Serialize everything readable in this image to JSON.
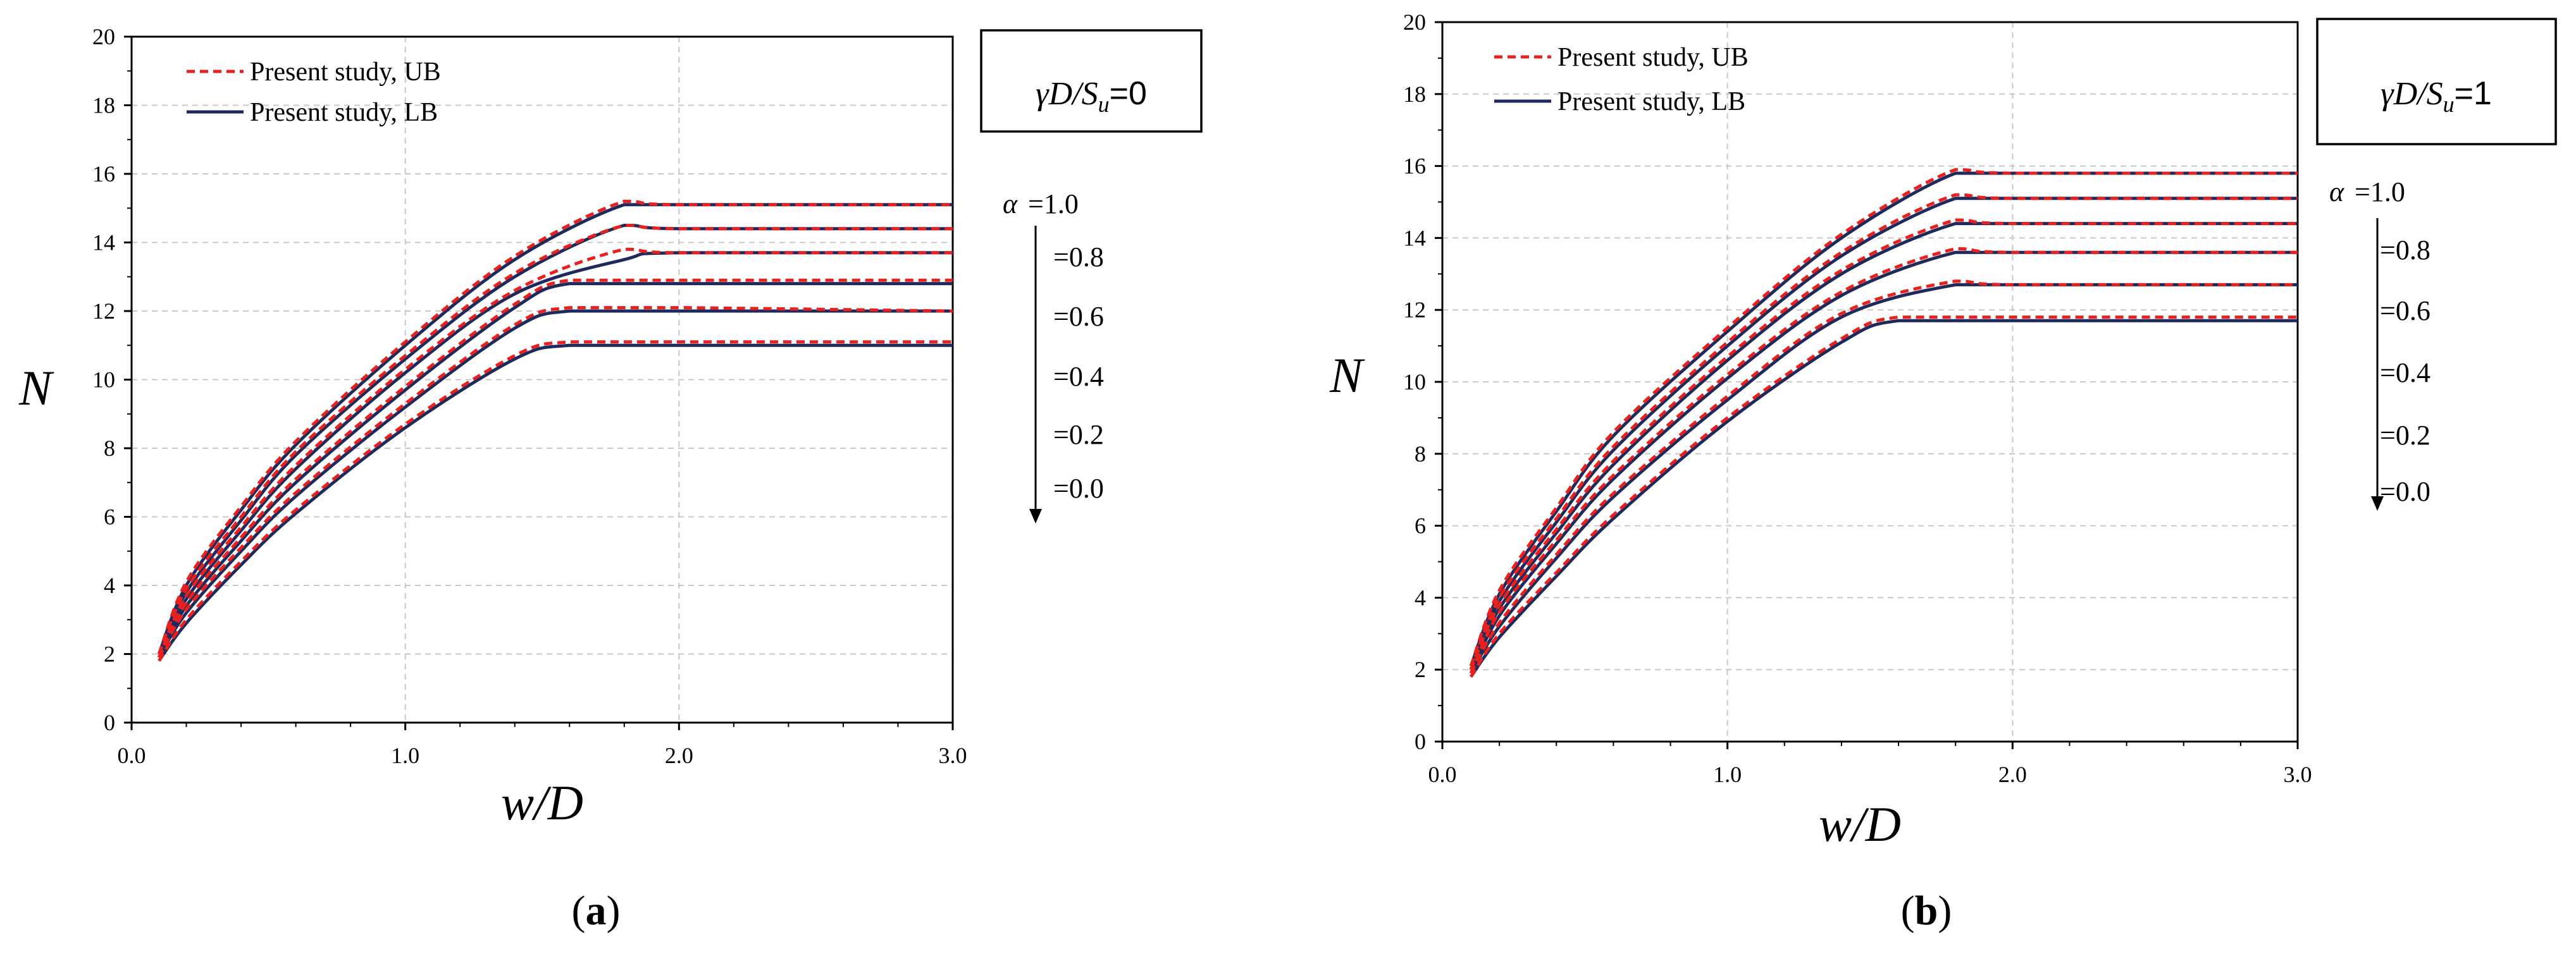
{
  "chart_data": [
    {
      "type": "line",
      "panel_label": "a",
      "xlabel": "w/D",
      "ylabel": "N",
      "xlim": [
        0,
        3
      ],
      "ylim": [
        0,
        20
      ],
      "x_ticks": [
        "0.0",
        "1.0",
        "2.0",
        "3.0"
      ],
      "y_ticks": [
        "0",
        "2",
        "4",
        "6",
        "8",
        "10",
        "12",
        "14",
        "16",
        "18",
        "20"
      ],
      "grid": true,
      "legend_position": "top-left",
      "legend": [
        "Present study, UB",
        "Present study, LB"
      ],
      "annotation": {
        "prefix": "γD/S",
        "subscript": "u",
        "suffix": "=0"
      },
      "alpha_title": "α",
      "alpha_labels": [
        "=1.0",
        "=0.8",
        "=0.6",
        "=0.4",
        "=0.2",
        "=0.0"
      ],
      "series": [
        {
          "name": "α=1.0 UB",
          "style": "UB",
          "x": [
            0.1,
            0.2,
            0.4,
            0.6,
            1.0,
            1.4,
            1.8,
            2.0,
            3.0
          ],
          "values": [
            2.0,
            4.1,
            6.3,
            8.2,
            11.1,
            13.6,
            15.2,
            15.1,
            15.1
          ]
        },
        {
          "name": "α=1.0 LB",
          "style": "LB",
          "x": [
            0.1,
            0.2,
            0.4,
            0.6,
            1.0,
            1.4,
            1.8,
            2.0,
            3.0
          ],
          "values": [
            2.0,
            4.0,
            6.2,
            8.1,
            11.0,
            13.5,
            15.1,
            15.1,
            15.1
          ]
        },
        {
          "name": "α=0.8 UB",
          "style": "UB",
          "x": [
            0.1,
            0.2,
            0.4,
            0.6,
            1.0,
            1.4,
            1.8,
            2.0,
            3.0
          ],
          "values": [
            2.0,
            3.9,
            6.0,
            7.9,
            10.7,
            13.1,
            14.5,
            14.4,
            14.4
          ]
        },
        {
          "name": "α=0.8 LB",
          "style": "LB",
          "x": [
            0.1,
            0.2,
            0.4,
            0.6,
            1.0,
            1.4,
            1.8,
            2.0,
            3.0
          ],
          "values": [
            2.0,
            3.8,
            5.9,
            7.8,
            10.6,
            13.0,
            14.5,
            14.4,
            14.4
          ]
        },
        {
          "name": "α=0.6 UB",
          "style": "UB",
          "x": [
            0.1,
            0.2,
            0.4,
            0.6,
            1.0,
            1.4,
            1.8,
            2.0,
            3.0
          ],
          "values": [
            1.9,
            3.7,
            5.7,
            7.5,
            10.3,
            12.6,
            13.8,
            13.7,
            13.7
          ]
        },
        {
          "name": "α=0.6 LB",
          "style": "LB",
          "x": [
            0.1,
            0.2,
            0.4,
            0.6,
            1.0,
            1.4,
            1.8,
            2.0,
            3.0
          ],
          "values": [
            1.9,
            3.6,
            5.6,
            7.4,
            10.2,
            12.5,
            13.5,
            13.7,
            13.7
          ]
        },
        {
          "name": "α=0.4 UB",
          "style": "UB",
          "x": [
            0.1,
            0.2,
            0.4,
            0.6,
            1.0,
            1.4,
            1.6,
            2.0,
            3.0
          ],
          "values": [
            1.9,
            3.5,
            5.4,
            7.1,
            9.8,
            12.2,
            12.9,
            12.9,
            12.9
          ]
        },
        {
          "name": "α=0.4 LB",
          "style": "LB",
          "x": [
            0.1,
            0.2,
            0.4,
            0.6,
            1.0,
            1.4,
            1.6,
            2.0,
            3.0
          ],
          "values": [
            1.9,
            3.4,
            5.3,
            7.0,
            9.7,
            12.1,
            12.8,
            12.8,
            12.8
          ]
        },
        {
          "name": "α=0.2 UB",
          "style": "UB",
          "x": [
            0.1,
            0.2,
            0.4,
            0.6,
            1.0,
            1.4,
            1.6,
            2.0,
            3.0
          ],
          "values": [
            1.9,
            3.3,
            5.1,
            6.7,
            9.3,
            11.6,
            12.1,
            12.1,
            12.0
          ]
        },
        {
          "name": "α=0.2 LB",
          "style": "LB",
          "x": [
            0.1,
            0.2,
            0.4,
            0.6,
            1.0,
            1.4,
            1.6,
            2.0,
            3.0
          ],
          "values": [
            1.9,
            3.2,
            5.0,
            6.6,
            9.2,
            11.5,
            12.0,
            12.0,
            12.0
          ]
        },
        {
          "name": "α=0.0 UB",
          "style": "UB",
          "x": [
            0.1,
            0.2,
            0.4,
            0.6,
            1.0,
            1.4,
            1.6,
            2.0,
            3.0
          ],
          "values": [
            1.8,
            3.0,
            4.7,
            6.2,
            8.7,
            10.7,
            11.1,
            11.1,
            11.1
          ]
        },
        {
          "name": "α=0.0 LB",
          "style": "LB",
          "x": [
            0.1,
            0.2,
            0.4,
            0.6,
            1.0,
            1.4,
            1.6,
            2.0,
            3.0
          ],
          "values": [
            1.8,
            2.9,
            4.6,
            6.1,
            8.6,
            10.6,
            11.0,
            11.0,
            11.0
          ]
        }
      ]
    },
    {
      "type": "line",
      "panel_label": "b",
      "xlabel": "w/D",
      "ylabel": "N",
      "xlim": [
        0,
        3
      ],
      "ylim": [
        0,
        20
      ],
      "x_ticks": [
        "0.0",
        "1.0",
        "2.0",
        "3.0"
      ],
      "y_ticks": [
        "0",
        "2",
        "4",
        "6",
        "8",
        "10",
        "12",
        "14",
        "16",
        "18",
        "20"
      ],
      "grid": true,
      "legend_position": "top-left",
      "legend": [
        "Present study, UB",
        "Present study, LB"
      ],
      "annotation": {
        "prefix": "γD/S",
        "subscript": "u",
        "suffix": "=1"
      },
      "alpha_title": "α",
      "alpha_labels": [
        "=1.0",
        "=0.8",
        "=0.6",
        "=0.4",
        "=0.2",
        "=0.0"
      ],
      "series": [
        {
          "name": "α=1.0 UB",
          "style": "UB",
          "x": [
            0.1,
            0.2,
            0.4,
            0.6,
            1.0,
            1.4,
            1.8,
            2.0,
            3.0
          ],
          "values": [
            2.1,
            4.2,
            6.5,
            8.6,
            11.5,
            14.1,
            15.9,
            15.8,
            15.8
          ]
        },
        {
          "name": "α=1.0 LB",
          "style": "LB",
          "x": [
            0.1,
            0.2,
            0.4,
            0.6,
            1.0,
            1.4,
            1.8,
            2.0,
            3.0
          ],
          "values": [
            2.1,
            4.1,
            6.4,
            8.5,
            11.4,
            14.0,
            15.8,
            15.8,
            15.8
          ]
        },
        {
          "name": "α=0.8 UB",
          "style": "UB",
          "x": [
            0.1,
            0.2,
            0.4,
            0.6,
            1.0,
            1.4,
            1.8,
            2.0,
            3.0
          ],
          "values": [
            2.0,
            4.0,
            6.2,
            8.2,
            11.1,
            13.6,
            15.2,
            15.1,
            15.1
          ]
        },
        {
          "name": "α=0.8 LB",
          "style": "LB",
          "x": [
            0.1,
            0.2,
            0.4,
            0.6,
            1.0,
            1.4,
            1.8,
            2.0,
            3.0
          ],
          "values": [
            2.0,
            3.9,
            6.1,
            8.1,
            11.0,
            13.5,
            15.1,
            15.1,
            15.1
          ]
        },
        {
          "name": "α=0.6 UB",
          "style": "UB",
          "x": [
            0.1,
            0.2,
            0.4,
            0.6,
            1.0,
            1.4,
            1.8,
            2.0,
            3.0
          ],
          "values": [
            2.0,
            3.8,
            5.9,
            7.8,
            10.7,
            13.1,
            14.5,
            14.4,
            14.4
          ]
        },
        {
          "name": "α=0.6 LB",
          "style": "LB",
          "x": [
            0.1,
            0.2,
            0.4,
            0.6,
            1.0,
            1.4,
            1.8,
            2.0,
            3.0
          ],
          "values": [
            2.0,
            3.7,
            5.8,
            7.7,
            10.6,
            13.0,
            14.4,
            14.4,
            14.4
          ]
        },
        {
          "name": "α=0.4 UB",
          "style": "UB",
          "x": [
            0.1,
            0.2,
            0.4,
            0.6,
            1.0,
            1.4,
            1.8,
            2.0,
            3.0
          ],
          "values": [
            1.9,
            3.6,
            5.6,
            7.4,
            10.2,
            12.5,
            13.7,
            13.6,
            13.6
          ]
        },
        {
          "name": "α=0.4 LB",
          "style": "LB",
          "x": [
            0.1,
            0.2,
            0.4,
            0.6,
            1.0,
            1.4,
            1.8,
            2.0,
            3.0
          ],
          "values": [
            1.9,
            3.5,
            5.5,
            7.3,
            10.1,
            12.4,
            13.6,
            13.6,
            13.6
          ]
        },
        {
          "name": "α=0.2 UB",
          "style": "UB",
          "x": [
            0.1,
            0.2,
            0.4,
            0.6,
            1.0,
            1.4,
            1.8,
            2.0,
            3.0
          ],
          "values": [
            1.9,
            3.3,
            5.2,
            6.9,
            9.6,
            11.9,
            12.8,
            12.7,
            12.7
          ]
        },
        {
          "name": "α=0.2 LB",
          "style": "LB",
          "x": [
            0.1,
            0.2,
            0.4,
            0.6,
            1.0,
            1.4,
            1.8,
            2.0,
            3.0
          ],
          "values": [
            1.9,
            3.2,
            5.1,
            6.8,
            9.5,
            11.8,
            12.7,
            12.7,
            12.7
          ]
        },
        {
          "name": "α=0.0 UB",
          "style": "UB",
          "x": [
            0.1,
            0.2,
            0.4,
            0.6,
            1.0,
            1.4,
            1.6,
            2.0,
            3.0
          ],
          "values": [
            1.8,
            3.0,
            4.7,
            6.3,
            9.0,
            11.2,
            11.8,
            11.8,
            11.8
          ]
        },
        {
          "name": "α=0.0 LB",
          "style": "LB",
          "x": [
            0.1,
            0.2,
            0.4,
            0.6,
            1.0,
            1.4,
            1.6,
            2.0,
            3.0
          ],
          "values": [
            1.8,
            2.9,
            4.6,
            6.2,
            8.9,
            11.1,
            11.7,
            11.7,
            11.7
          ]
        }
      ]
    }
  ],
  "colors": {
    "ub": "#e8211f",
    "lb": "#1f2a5c",
    "grid": "#c8c8c8",
    "text": "#000000"
  }
}
